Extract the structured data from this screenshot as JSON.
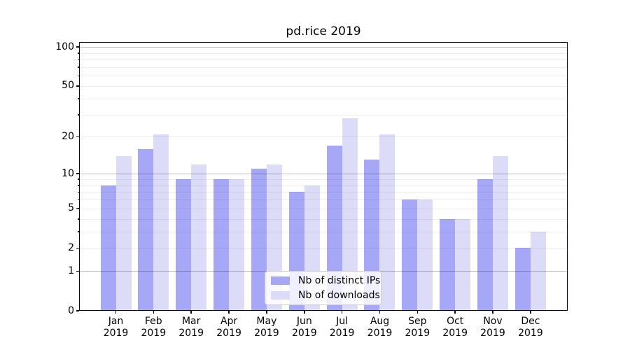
{
  "title": "pd.rice 2019",
  "chart_data": {
    "type": "bar",
    "title": "pd.rice 2019",
    "categories": [
      "Jan 2019",
      "Feb 2019",
      "Mar 2019",
      "Apr 2019",
      "May 2019",
      "Jun 2019",
      "Jul 2019",
      "Aug 2019",
      "Sep 2019",
      "Oct 2019",
      "Nov 2019",
      "Dec 2019"
    ],
    "series": [
      {
        "name": "Nb of distinct IPs",
        "color": "#a7a7f7",
        "values": [
          8,
          16,
          9,
          9,
          11,
          7,
          17,
          13,
          6,
          4,
          9,
          2
        ]
      },
      {
        "name": "Nb of downloads",
        "color": "#dcdcf9",
        "values": [
          14,
          21,
          12,
          9,
          12,
          8,
          28,
          21,
          6,
          4,
          14,
          3
        ]
      }
    ],
    "xlabel": "",
    "ylabel": "",
    "yscale": "log1p",
    "ylim": [
      0,
      109
    ],
    "yticks": [
      0,
      1,
      2,
      5,
      10,
      20,
      50,
      100
    ],
    "major_gridlines": [
      1,
      10,
      100
    ],
    "minor_gridlines": [
      2,
      3,
      4,
      5,
      6,
      7,
      8,
      9,
      20,
      30,
      40,
      50,
      60,
      70,
      80,
      90
    ],
    "grid": "horizontal",
    "legend_position": "inside lower-center"
  },
  "colors": {
    "background": "#ffffff",
    "spine": "#0a0a0a",
    "major_grid": "#c3c3c3",
    "minor_grid": "#ebebeb",
    "text": "#000000",
    "legend_border": "#cccccc",
    "legend_background": "rgba(255,255,255,0.82)"
  }
}
